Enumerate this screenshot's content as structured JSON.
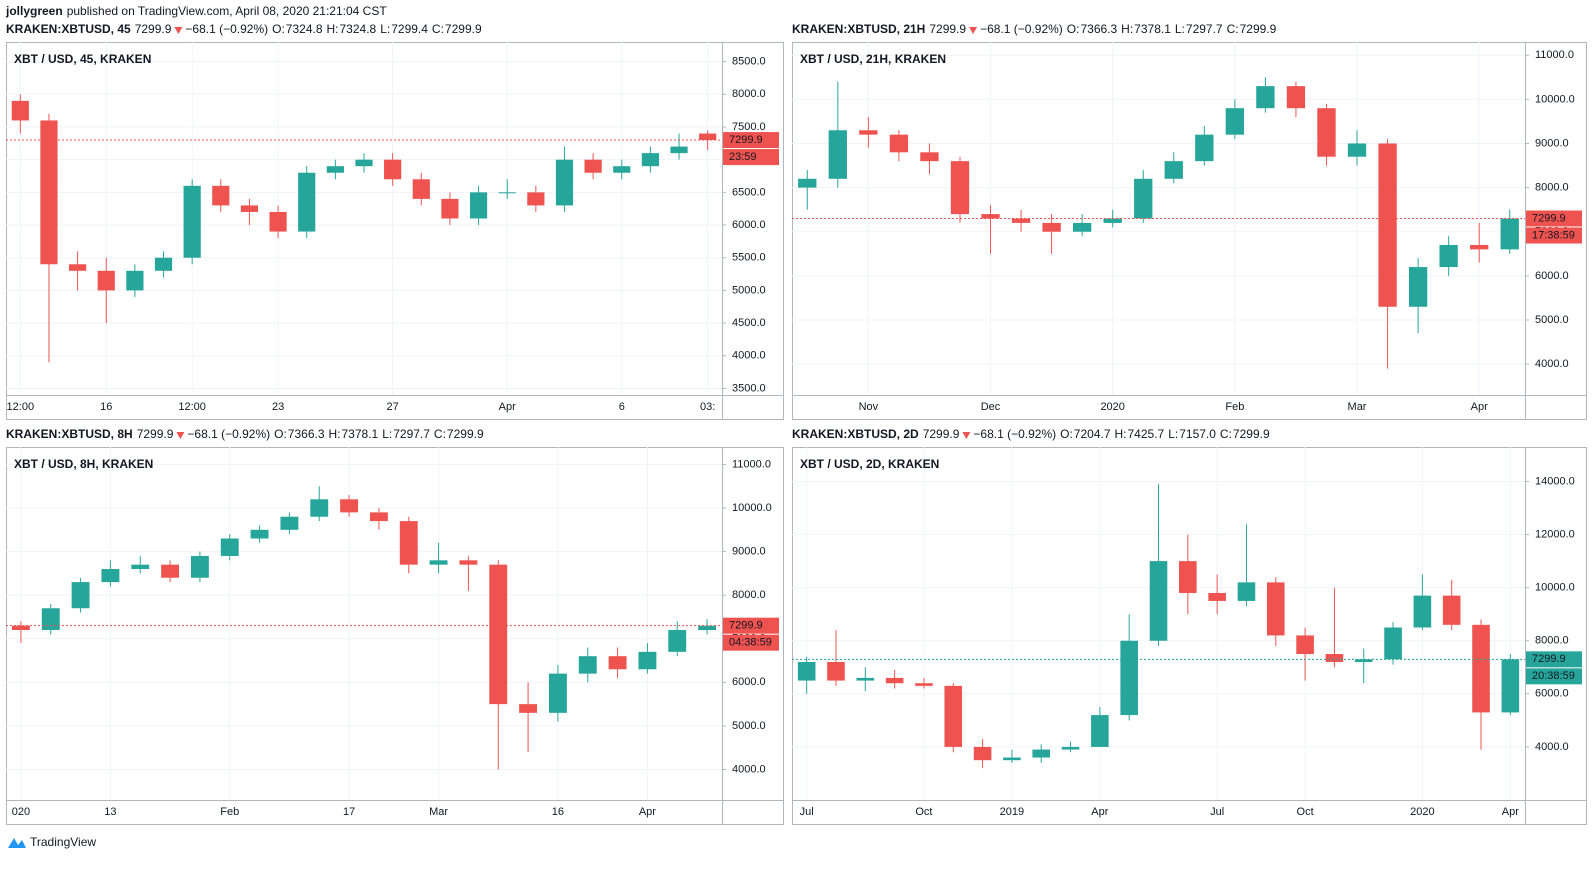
{
  "author": "jollygreen",
  "published": "published on TradingView.com, April 08, 2020 21:21:04 CST",
  "footer": "TradingView",
  "chart_data": [
    {
      "type": "candlestick",
      "symbol": "KRAKEN:XBTUSD, 45",
      "last": 7299.9,
      "change": "−68.1 (−0.92%)",
      "ohlc_header": [
        {
          "label": "O:",
          "value": "7324.8"
        },
        {
          "label": "H:",
          "value": "7324.8"
        },
        {
          "label": "L:",
          "value": "7299.4"
        },
        {
          "label": "C:",
          "value": "7299.9"
        }
      ],
      "legend": "XBT / USD, 45, KRAKEN",
      "countdown": "23:59",
      "last_color": "#ef5350",
      "up_color": "#26a69a",
      "down_color": "#ef5350",
      "grid": true,
      "categories": [
        "12:00",
        null,
        null,
        "16",
        null,
        null,
        "12:00",
        null,
        null,
        "23",
        null,
        null,
        null,
        "27",
        null,
        null,
        null,
        "Apr",
        null,
        null,
        null,
        "6",
        null,
        null,
        "03:"
      ],
      "open": [
        7900,
        7600,
        5400,
        5300,
        5000,
        5300,
        5500,
        6600,
        6300,
        6200,
        5900,
        6800,
        6900,
        7000,
        6700,
        6400,
        6100,
        6500,
        6500,
        6300,
        7000,
        6800,
        6900,
        7100,
        7400
      ],
      "high": [
        8000,
        7700,
        5600,
        5500,
        5400,
        5600,
        6700,
        6700,
        6400,
        6300,
        6900,
        7000,
        7100,
        7100,
        6800,
        6500,
        6600,
        6700,
        6600,
        7200,
        7100,
        7000,
        7200,
        7400,
        7450
      ],
      "low": [
        7400,
        3900,
        5000,
        4500,
        4900,
        5200,
        5400,
        6200,
        6000,
        5800,
        5800,
        6700,
        6800,
        6600,
        6300,
        6000,
        6000,
        6400,
        6200,
        6200,
        6700,
        6700,
        6800,
        7000,
        7150
      ],
      "close": [
        7600,
        5400,
        5300,
        5000,
        5300,
        5500,
        6600,
        6300,
        6200,
        5900,
        6800,
        6900,
        7000,
        6700,
        6400,
        6100,
        6500,
        6500,
        6300,
        7000,
        6800,
        6900,
        7100,
        7200,
        7300
      ],
      "ylim": [
        3400,
        8800
      ],
      "yticks": [
        {
          "value": 3500,
          "label": "3500.0"
        },
        {
          "value": 4000,
          "label": "4000.0"
        },
        {
          "value": 4500,
          "label": "4500.0"
        },
        {
          "value": 5000,
          "label": "5000.0"
        },
        {
          "value": 5500,
          "label": "5500.0"
        },
        {
          "value": 6000,
          "label": "6000.0"
        },
        {
          "value": 6500,
          "label": "6500.0"
        },
        {
          "value": 7000,
          "label": "7000.0"
        },
        {
          "value": 7500,
          "label": "7500.0"
        },
        {
          "value": 8000,
          "label": "8000.0"
        },
        {
          "value": 8500,
          "label": "8500.0"
        }
      ]
    },
    {
      "type": "candlestick",
      "symbol": "KRAKEN:XBTUSD, 21H",
      "last": 7299.9,
      "change": "−68.1 (−0.92%)",
      "ohlc_header": [
        {
          "label": "O:",
          "value": "7366.3"
        },
        {
          "label": "H:",
          "value": "7378.1"
        },
        {
          "label": "L:",
          "value": "7297.7"
        },
        {
          "label": "C:",
          "value": "7299.9"
        }
      ],
      "legend": "XBT / USD, 21H, KRAKEN",
      "countdown": "17:38:59",
      "last_color": "#ef5350",
      "up_color": "#26a69a",
      "down_color": "#ef5350",
      "grid": true,
      "categories": [
        null,
        null,
        "Nov",
        null,
        null,
        null,
        "Dec",
        null,
        null,
        null,
        "2020",
        null,
        null,
        null,
        "Feb",
        null,
        null,
        null,
        "Mar",
        null,
        null,
        null,
        "Apr",
        null
      ],
      "open": [
        8000,
        8200,
        9300,
        9200,
        8800,
        8600,
        7400,
        7300,
        7200,
        7000,
        7200,
        7300,
        8200,
        8600,
        9200,
        9800,
        10300,
        9800,
        8700,
        9000,
        5300,
        6200,
        6700,
        6600
      ],
      "high": [
        8400,
        10400,
        9600,
        9300,
        9000,
        8700,
        7600,
        7500,
        7400,
        7400,
        7500,
        8400,
        8800,
        9400,
        10000,
        10500,
        10400,
        9900,
        9300,
        9100,
        6400,
        6900,
        7200,
        7500
      ],
      "low": [
        7500,
        8000,
        8900,
        8600,
        8300,
        7200,
        6500,
        7000,
        6500,
        6900,
        7100,
        7200,
        8100,
        8500,
        9100,
        9700,
        9600,
        8500,
        8500,
        3900,
        4700,
        6000,
        6300,
        6500
      ],
      "close": [
        8200,
        9300,
        9200,
        8800,
        8600,
        7400,
        7300,
        7200,
        7000,
        7200,
        7300,
        8200,
        8600,
        9200,
        9800,
        10300,
        9800,
        8700,
        9000,
        5300,
        6200,
        6700,
        6600,
        7300
      ],
      "ylim": [
        3300,
        11300
      ],
      "yticks": [
        {
          "value": 4000,
          "label": "4000.0"
        },
        {
          "value": 5000,
          "label": "5000.0"
        },
        {
          "value": 6000,
          "label": "6000.0"
        },
        {
          "value": 7000,
          "label": "7000.0"
        },
        {
          "value": 8000,
          "label": "8000.0"
        },
        {
          "value": 9000,
          "label": "9000.0"
        },
        {
          "value": 10000,
          "label": "10000.0"
        },
        {
          "value": 11000,
          "label": "11000.0"
        }
      ]
    },
    {
      "type": "candlestick",
      "symbol": "KRAKEN:XBTUSD, 8H",
      "last": 7299.9,
      "change": "−68.1 (−0.92%)",
      "ohlc_header": [
        {
          "label": "O:",
          "value": "7366.3"
        },
        {
          "label": "H:",
          "value": "7378.1"
        },
        {
          "label": "L:",
          "value": "7297.7"
        },
        {
          "label": "C:",
          "value": "7299.9"
        }
      ],
      "legend": "XBT / USD, 8H, KRAKEN",
      "countdown": "04:38:59",
      "last_color": "#ef5350",
      "up_color": "#26a69a",
      "down_color": "#ef5350",
      "grid": true,
      "categories": [
        "020",
        null,
        null,
        "13",
        null,
        null,
        null,
        "Feb",
        null,
        null,
        null,
        "17",
        null,
        null,
        "Mar",
        null,
        null,
        null,
        "16",
        null,
        null,
        "Apr",
        null,
        null
      ],
      "open": [
        7300,
        7200,
        7700,
        8300,
        8600,
        8700,
        8400,
        8900,
        9300,
        9500,
        9800,
        10200,
        9900,
        9700,
        8700,
        8800,
        8700,
        5500,
        5300,
        6200,
        6600,
        6300,
        6700,
        7200
      ],
      "high": [
        7400,
        7800,
        8400,
        8800,
        8900,
        8800,
        9000,
        9400,
        9600,
        9900,
        10500,
        10300,
        10000,
        9800,
        9200,
        8900,
        8800,
        6000,
        6400,
        6800,
        6800,
        6900,
        7400,
        7450
      ],
      "low": [
        6900,
        7100,
        7600,
        8200,
        8500,
        8300,
        8300,
        8800,
        9200,
        9400,
        9700,
        9800,
        9500,
        8500,
        8500,
        8100,
        4000,
        4400,
        5100,
        6000,
        6100,
        6200,
        6600,
        7100
      ],
      "close": [
        7200,
        7700,
        8300,
        8600,
        8700,
        8400,
        8900,
        9300,
        9500,
        9800,
        10200,
        9900,
        9700,
        8700,
        8800,
        8700,
        5500,
        5300,
        6200,
        6600,
        6300,
        6700,
        7200,
        7300
      ],
      "ylim": [
        3300,
        11400
      ],
      "yticks": [
        {
          "value": 4000,
          "label": "4000.0"
        },
        {
          "value": 5000,
          "label": "5000.0"
        },
        {
          "value": 6000,
          "label": "6000.0"
        },
        {
          "value": 7000,
          "label": "7000.0"
        },
        {
          "value": 8000,
          "label": "8000.0"
        },
        {
          "value": 9000,
          "label": "9000.0"
        },
        {
          "value": 10000,
          "label": "10000.0"
        },
        {
          "value": 11000,
          "label": "11000.0"
        }
      ]
    },
    {
      "type": "candlestick",
      "symbol": "KRAKEN:XBTUSD, 2D",
      "last": 7299.9,
      "change": "−68.1 (−0.92%)",
      "ohlc_header": [
        {
          "label": "O:",
          "value": "7204.7"
        },
        {
          "label": "H:",
          "value": "7425.7"
        },
        {
          "label": "L:",
          "value": "7157.0"
        },
        {
          "label": "C:",
          "value": "7299.9"
        }
      ],
      "legend": "XBT / USD, 2D, KRAKEN",
      "countdown": "20:38:59",
      "last_color": "#26a69a",
      "up_color": "#26a69a",
      "down_color": "#ef5350",
      "grid": true,
      "categories": [
        "Jul",
        null,
        null,
        null,
        "Oct",
        null,
        null,
        "2019",
        null,
        null,
        "Apr",
        null,
        null,
        null,
        "Jul",
        null,
        null,
        "Oct",
        null,
        null,
        null,
        "2020",
        null,
        null,
        "Apr"
      ],
      "open": [
        6500,
        7200,
        6500,
        6600,
        6400,
        6300,
        4000,
        3500,
        3600,
        3900,
        4000,
        5200,
        8000,
        11000,
        9800,
        9500,
        10200,
        8200,
        7500,
        7200,
        7300,
        8500,
        9700,
        8600,
        5300
      ],
      "high": [
        7400,
        8400,
        7000,
        6900,
        6600,
        6400,
        4300,
        3900,
        4100,
        4200,
        5500,
        9000,
        13900,
        12000,
        10500,
        12400,
        10400,
        8500,
        10000,
        7700,
        8700,
        10500,
        10300,
        8800,
        7500
      ],
      "low": [
        6000,
        6300,
        6100,
        6200,
        6200,
        3800,
        3200,
        3400,
        3400,
        3800,
        4000,
        5000,
        7800,
        9000,
        9000,
        9300,
        7800,
        6500,
        7000,
        6400,
        7100,
        8400,
        8400,
        3900,
        5200
      ],
      "close": [
        7200,
        6500,
        6600,
        6400,
        6300,
        4000,
        3500,
        3600,
        3900,
        4000,
        5200,
        8000,
        11000,
        9800,
        9500,
        10200,
        8200,
        7500,
        7200,
        7300,
        8500,
        9700,
        8600,
        5300,
        7300
      ],
      "ylim": [
        2000,
        15300
      ],
      "yticks": [
        {
          "value": 4000,
          "label": "4000.0"
        },
        {
          "value": 6000,
          "label": "6000.0"
        },
        {
          "value": 8000,
          "label": "8000.0"
        },
        {
          "value": 10000,
          "label": "10000.0"
        },
        {
          "value": 12000,
          "label": "12000.0"
        },
        {
          "value": 14000,
          "label": "14000.0"
        }
      ]
    }
  ]
}
